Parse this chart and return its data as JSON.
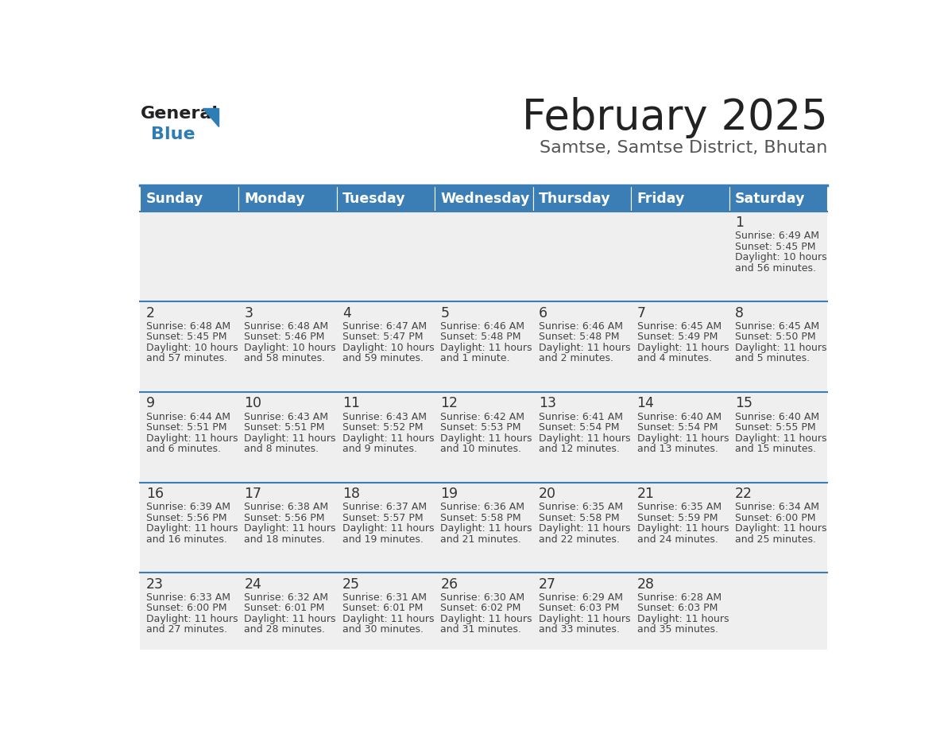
{
  "title": "February 2025",
  "subtitle": "Samtse, Samtse District, Bhutan",
  "days_of_week": [
    "Sunday",
    "Monday",
    "Tuesday",
    "Wednesday",
    "Thursday",
    "Friday",
    "Saturday"
  ],
  "header_bg": "#3A7EB5",
  "header_text": "#FFFFFF",
  "cell_bg_light": "#EFEFEF",
  "cell_bg_white": "#FFFFFF",
  "day_num_color": "#333333",
  "info_text_color": "#444444",
  "border_color": "#3A7EB5",
  "title_color": "#222222",
  "subtitle_color": "#555555",
  "logo_general_color": "#222222",
  "logo_blue_color": "#2E7DB5",
  "calendar_data": [
    [
      {
        "day": "",
        "sunrise": "",
        "sunset": "",
        "daylight": ""
      },
      {
        "day": "",
        "sunrise": "",
        "sunset": "",
        "daylight": ""
      },
      {
        "day": "",
        "sunrise": "",
        "sunset": "",
        "daylight": ""
      },
      {
        "day": "",
        "sunrise": "",
        "sunset": "",
        "daylight": ""
      },
      {
        "day": "",
        "sunrise": "",
        "sunset": "",
        "daylight": ""
      },
      {
        "day": "",
        "sunrise": "",
        "sunset": "",
        "daylight": ""
      },
      {
        "day": "1",
        "sunrise": "6:49 AM",
        "sunset": "5:45 PM",
        "daylight": "10 hours\nand 56 minutes."
      }
    ],
    [
      {
        "day": "2",
        "sunrise": "6:48 AM",
        "sunset": "5:45 PM",
        "daylight": "10 hours\nand 57 minutes."
      },
      {
        "day": "3",
        "sunrise": "6:48 AM",
        "sunset": "5:46 PM",
        "daylight": "10 hours\nand 58 minutes."
      },
      {
        "day": "4",
        "sunrise": "6:47 AM",
        "sunset": "5:47 PM",
        "daylight": "10 hours\nand 59 minutes."
      },
      {
        "day": "5",
        "sunrise": "6:46 AM",
        "sunset": "5:48 PM",
        "daylight": "11 hours\nand 1 minute."
      },
      {
        "day": "6",
        "sunrise": "6:46 AM",
        "sunset": "5:48 PM",
        "daylight": "11 hours\nand 2 minutes."
      },
      {
        "day": "7",
        "sunrise": "6:45 AM",
        "sunset": "5:49 PM",
        "daylight": "11 hours\nand 4 minutes."
      },
      {
        "day": "8",
        "sunrise": "6:45 AM",
        "sunset": "5:50 PM",
        "daylight": "11 hours\nand 5 minutes."
      }
    ],
    [
      {
        "day": "9",
        "sunrise": "6:44 AM",
        "sunset": "5:51 PM",
        "daylight": "11 hours\nand 6 minutes."
      },
      {
        "day": "10",
        "sunrise": "6:43 AM",
        "sunset": "5:51 PM",
        "daylight": "11 hours\nand 8 minutes."
      },
      {
        "day": "11",
        "sunrise": "6:43 AM",
        "sunset": "5:52 PM",
        "daylight": "11 hours\nand 9 minutes."
      },
      {
        "day": "12",
        "sunrise": "6:42 AM",
        "sunset": "5:53 PM",
        "daylight": "11 hours\nand 10 minutes."
      },
      {
        "day": "13",
        "sunrise": "6:41 AM",
        "sunset": "5:54 PM",
        "daylight": "11 hours\nand 12 minutes."
      },
      {
        "day": "14",
        "sunrise": "6:40 AM",
        "sunset": "5:54 PM",
        "daylight": "11 hours\nand 13 minutes."
      },
      {
        "day": "15",
        "sunrise": "6:40 AM",
        "sunset": "5:55 PM",
        "daylight": "11 hours\nand 15 minutes."
      }
    ],
    [
      {
        "day": "16",
        "sunrise": "6:39 AM",
        "sunset": "5:56 PM",
        "daylight": "11 hours\nand 16 minutes."
      },
      {
        "day": "17",
        "sunrise": "6:38 AM",
        "sunset": "5:56 PM",
        "daylight": "11 hours\nand 18 minutes."
      },
      {
        "day": "18",
        "sunrise": "6:37 AM",
        "sunset": "5:57 PM",
        "daylight": "11 hours\nand 19 minutes."
      },
      {
        "day": "19",
        "sunrise": "6:36 AM",
        "sunset": "5:58 PM",
        "daylight": "11 hours\nand 21 minutes."
      },
      {
        "day": "20",
        "sunrise": "6:35 AM",
        "sunset": "5:58 PM",
        "daylight": "11 hours\nand 22 minutes."
      },
      {
        "day": "21",
        "sunrise": "6:35 AM",
        "sunset": "5:59 PM",
        "daylight": "11 hours\nand 24 minutes."
      },
      {
        "day": "22",
        "sunrise": "6:34 AM",
        "sunset": "6:00 PM",
        "daylight": "11 hours\nand 25 minutes."
      }
    ],
    [
      {
        "day": "23",
        "sunrise": "6:33 AM",
        "sunset": "6:00 PM",
        "daylight": "11 hours\nand 27 minutes."
      },
      {
        "day": "24",
        "sunrise": "6:32 AM",
        "sunset": "6:01 PM",
        "daylight": "11 hours\nand 28 minutes."
      },
      {
        "day": "25",
        "sunrise": "6:31 AM",
        "sunset": "6:01 PM",
        "daylight": "11 hours\nand 30 minutes."
      },
      {
        "day": "26",
        "sunrise": "6:30 AM",
        "sunset": "6:02 PM",
        "daylight": "11 hours\nand 31 minutes."
      },
      {
        "day": "27",
        "sunrise": "6:29 AM",
        "sunset": "6:03 PM",
        "daylight": "11 hours\nand 33 minutes."
      },
      {
        "day": "28",
        "sunrise": "6:28 AM",
        "sunset": "6:03 PM",
        "daylight": "11 hours\nand 35 minutes."
      },
      {
        "day": "",
        "sunrise": "",
        "sunset": "",
        "daylight": ""
      }
    ]
  ]
}
